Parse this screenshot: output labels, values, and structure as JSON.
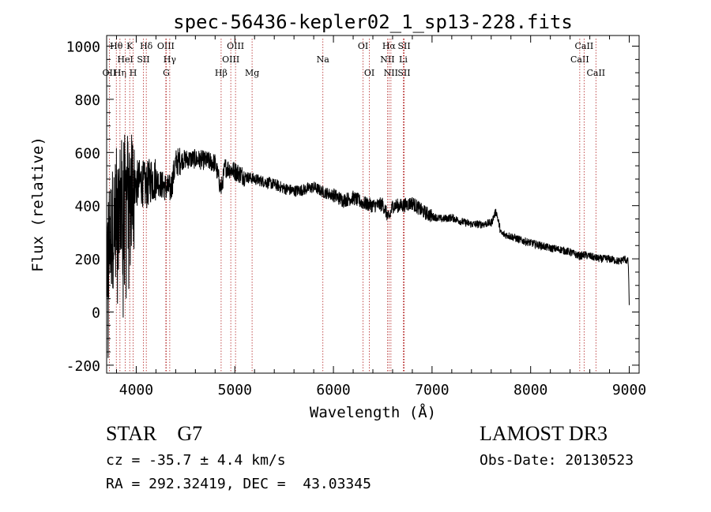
{
  "chart_data": {
    "type": "line",
    "title": "spec-56436-kepler02_1_sp13-228.fits",
    "xlabel": "Wavelength (Å)",
    "ylabel": "Flux (relative)",
    "xlim": [
      3700,
      9100
    ],
    "ylim": [
      -230,
      1040
    ],
    "xticks": [
      4000,
      5000,
      6000,
      7000,
      8000,
      9000
    ],
    "yticks": [
      -200,
      0,
      200,
      400,
      600,
      800,
      1000
    ],
    "spectrum_anchors": {
      "wavelength": [
        3700,
        3750,
        3800,
        3850,
        3900,
        3950,
        4000,
        4050,
        4100,
        4150,
        4200,
        4250,
        4300,
        4350,
        4400,
        4450,
        4500,
        4600,
        4700,
        4800,
        4861,
        4900,
        5000,
        5100,
        5200,
        5300,
        5400,
        5500,
        5600,
        5700,
        5800,
        5900,
        6000,
        6100,
        6200,
        6300,
        6400,
        6500,
        6563,
        6600,
        6700,
        6800,
        6900,
        7000,
        7100,
        7200,
        7300,
        7400,
        7500,
        7600,
        7650,
        7700,
        7800,
        7900,
        8000,
        8100,
        8200,
        8300,
        8400,
        8500,
        8550,
        8600,
        8700,
        8800,
        8900,
        8950,
        8990,
        9000
      ],
      "flux": [
        200,
        300,
        380,
        420,
        450,
        470,
        480,
        490,
        470,
        500,
        500,
        480,
        470,
        460,
        560,
        570,
        575,
        575,
        570,
        560,
        460,
        545,
        530,
        510,
        500,
        490,
        480,
        465,
        455,
        460,
        470,
        450,
        440,
        420,
        430,
        410,
        400,
        405,
        350,
        400,
        400,
        410,
        380,
        360,
        350,
        355,
        340,
        330,
        330,
        335,
        380,
        295,
        285,
        270,
        260,
        250,
        240,
        235,
        225,
        210,
        215,
        210,
        200,
        200,
        190,
        200,
        190,
        30
      ]
    },
    "spectral_lines": [
      {
        "label": "OII",
        "wavelength": 3727,
        "row": 3
      },
      {
        "label": "Hθ",
        "wavelength": 3798,
        "row": 1
      },
      {
        "label": "Hη",
        "wavelength": 3835,
        "row": 3
      },
      {
        "label": "HeI",
        "wavelength": 3889,
        "row": 2
      },
      {
        "label": "K",
        "wavelength": 3934,
        "row": 1
      },
      {
        "label": "SII",
        "wavelength": 4072,
        "row": 2
      },
      {
        "label": "H",
        "wavelength": 3969,
        "row": 3
      },
      {
        "label": "Hδ",
        "wavelength": 4102,
        "row": 1
      },
      {
        "label": "OIII",
        "wavelength": 4300,
        "row": 1
      },
      {
        "label": "Hγ",
        "wavelength": 4340,
        "row": 2
      },
      {
        "label": "G",
        "wavelength": 4305,
        "row": 3
      },
      {
        "label": "Hβ",
        "wavelength": 4861,
        "row": 3
      },
      {
        "label": "OIII",
        "wavelength": 4959,
        "row": 2
      },
      {
        "label": "OIII",
        "wavelength": 5007,
        "row": 1
      },
      {
        "label": "Mg",
        "wavelength": 5175,
        "row": 3
      },
      {
        "label": "Na",
        "wavelength": 5893,
        "row": 2
      },
      {
        "label": "OI",
        "wavelength": 6300,
        "row": 1
      },
      {
        "label": "OI",
        "wavelength": 6364,
        "row": 3
      },
      {
        "label": "NII",
        "wavelength": 6548,
        "row": 2
      },
      {
        "label": "Hα",
        "wavelength": 6563,
        "row": 1
      },
      {
        "label": "NII",
        "wavelength": 6583,
        "row": 3
      },
      {
        "label": "SII",
        "wavelength": 6716,
        "row": 3
      },
      {
        "label": "SII",
        "wavelength": 6717,
        "row": 1
      },
      {
        "label": "Li",
        "wavelength": 6708,
        "row": 2
      },
      {
        "label": "CaII",
        "wavelength": 8498,
        "row": 2
      },
      {
        "label": "CaII",
        "wavelength": 8542,
        "row": 1
      },
      {
        "label": "CaII",
        "wavelength": 8662,
        "row": 3
      }
    ]
  },
  "info": {
    "class_text": "STAR    G7",
    "survey": "LAMOST DR3",
    "cz": "cz = -35.7 ± 4.4 km/s",
    "obs_date": "Obs-Date: 20130523",
    "radec": "RA = 292.32419, DEC =  43.03345"
  },
  "colors": {
    "spectrum": "#000000",
    "line_markers": "#b22222",
    "axes": "#000000"
  }
}
